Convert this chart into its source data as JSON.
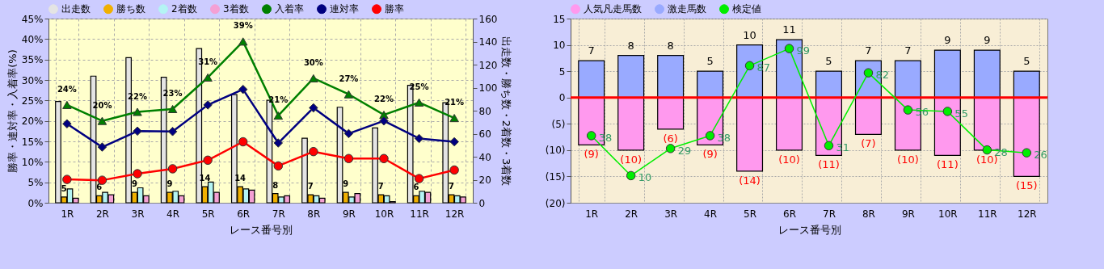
{
  "chart_data": [
    {
      "type": "bar",
      "xlabel": "レース番号別",
      "ylabel": "勝率・連対率・入着率(%)",
      "y2label": "出走数・勝ち数・2着数・3着数",
      "categories": [
        "1R",
        "2R",
        "3R",
        "4R",
        "5R",
        "6R",
        "7R",
        "8R",
        "9R",
        "10R",
        "11R",
        "12R"
      ],
      "ylim": [
        0,
        45
      ],
      "yticks": [
        {
          "value": 0,
          "label": "0%"
        },
        {
          "value": 5,
          "label": "5%"
        },
        {
          "value": 10,
          "label": "10%"
        },
        {
          "value": 15,
          "label": "15%"
        },
        {
          "value": 20,
          "label": "20%"
        },
        {
          "value": 25,
          "label": "25%"
        },
        {
          "value": 30,
          "label": "30%"
        },
        {
          "value": 35,
          "label": "35%"
        },
        {
          "value": 40,
          "label": "40%"
        },
        {
          "value": 45,
          "label": "45%"
        }
      ],
      "y2lim": [
        0,
        160
      ],
      "y2ticks": [
        0,
        20,
        40,
        60,
        80,
        100,
        120,
        140,
        160
      ],
      "grid": true,
      "legend": "top",
      "series": [
        {
          "name": "出走数",
          "type": "bar",
          "axis": "y2",
          "color": "#e4e4e4",
          "values": [
            88,
            110,
            126,
            109,
            134,
            94,
            89,
            56,
            83,
            65,
            102,
            87
          ]
        },
        {
          "name": "勝ち数",
          "type": "bar",
          "axis": "y2",
          "color": "#f0b000",
          "values": [
            5,
            6,
            9,
            9,
            14,
            14,
            8,
            7,
            9,
            7,
            6,
            7
          ],
          "value_labels": [
            "5",
            "6",
            "9",
            "9",
            "14",
            "14",
            "8",
            "7",
            "9",
            "7",
            "6",
            "7"
          ]
        },
        {
          "name": "2着数",
          "type": "bar",
          "axis": "y2",
          "color": "#b4f4f4",
          "values": [
            12,
            9,
            13,
            10,
            18,
            12,
            5,
            6,
            5,
            6,
            10,
            6
          ]
        },
        {
          "name": "3着数",
          "type": "bar",
          "axis": "y2",
          "color": "#f4a0d4",
          "values": [
            4,
            7,
            6,
            6,
            9,
            11,
            6,
            4,
            8,
            1,
            9,
            5
          ]
        },
        {
          "name": "入着率",
          "type": "line",
          "axis": "y",
          "color": "#008000",
          "marker": "triangle",
          "values": [
            23.9,
            20.0,
            22.2,
            22.9,
            30.6,
            39.4,
            21.3,
            30.4,
            26.5,
            21.5,
            24.5,
            20.7
          ],
          "value_labels": [
            "24%",
            "20%",
            "22%",
            "23%",
            "31%",
            "39%",
            "21%",
            "30%",
            "27%",
            "22%",
            "25%",
            "21%"
          ]
        },
        {
          "name": "連対率",
          "type": "line",
          "axis": "y",
          "color": "#000080",
          "marker": "diamond",
          "values": [
            19.3,
            13.6,
            17.5,
            17.4,
            23.9,
            27.7,
            14.6,
            23.2,
            16.9,
            20.0,
            15.7,
            14.9
          ]
        },
        {
          "name": "勝率",
          "type": "line",
          "axis": "y",
          "color": "#ff0000",
          "marker": "circle",
          "values": [
            5.7,
            5.5,
            7.1,
            8.3,
            10.4,
            14.9,
            9.0,
            12.5,
            10.8,
            10.8,
            5.9,
            8.0
          ]
        }
      ]
    },
    {
      "type": "bar",
      "stacked": true,
      "xlabel": "レース番号別",
      "categories": [
        "1R",
        "2R",
        "3R",
        "4R",
        "5R",
        "6R",
        "7R",
        "8R",
        "9R",
        "10R",
        "11R",
        "12R"
      ],
      "ylim": [
        -20,
        15
      ],
      "yticks": [
        {
          "value": -20,
          "label": "(20)"
        },
        {
          "value": -15,
          "label": "(15)"
        },
        {
          "value": -10,
          "label": "(10)"
        },
        {
          "value": -5,
          "label": "(5)"
        },
        0,
        5,
        10,
        15
      ],
      "y2lim": [
        -9,
        120
      ],
      "grid": true,
      "legend": "top",
      "ref_lines": [
        {
          "axis": "y",
          "value": 0,
          "color": "#ff0000"
        }
      ],
      "series": [
        {
          "name": "人気凡走馬数",
          "color": "#ff99ee",
          "values": [
            -9,
            -10,
            -6,
            -9,
            -14,
            -10,
            -11,
            -7,
            -10,
            -11,
            -10,
            -15
          ],
          "value_labels": [
            "(9)",
            "(10)",
            "(6)",
            "(9)",
            "(14)",
            "(10)",
            "(11)",
            "(7)",
            "(10)",
            "(11)",
            "(10)",
            "(15)"
          ]
        },
        {
          "name": "激走馬数",
          "color": "#99aaff",
          "values": [
            7,
            8,
            8,
            5,
            10,
            11,
            5,
            7,
            7,
            9,
            9,
            5
          ],
          "value_labels": [
            "7",
            "8",
            "8",
            "5",
            "10",
            "11",
            "5",
            "7",
            "7",
            "9",
            "9",
            "5"
          ]
        },
        {
          "name": "検定値",
          "type": "line",
          "axis": "y2",
          "color": "#00ee00",
          "marker": "circle",
          "values": [
            38,
            10,
            29,
            38,
            87,
            99,
            31,
            82,
            56,
            55,
            28,
            26
          ],
          "value_labels": [
            "38",
            "10",
            "29",
            "38",
            "87",
            "99",
            "31",
            "82",
            "56",
            "55",
            "28",
            "26"
          ]
        }
      ]
    }
  ]
}
